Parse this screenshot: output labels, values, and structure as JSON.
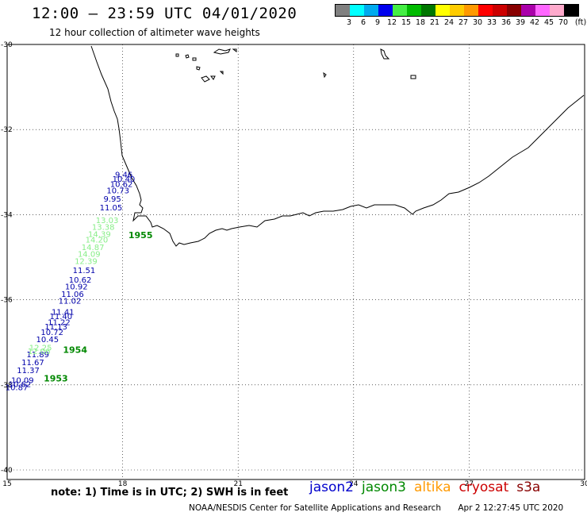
{
  "header": {
    "title": "12:00 – 23:59 UTC 04/01/2020",
    "subtitle": "12 hour collection of altimeter wave heights"
  },
  "legend": {
    "colors": [
      "#808080",
      "#00ffff",
      "#00aaee",
      "#0000ee",
      "#44ee44",
      "#00bb00",
      "#007700",
      "#ffff00",
      "#ffcc00",
      "#ff9900",
      "#ff0000",
      "#cc0000",
      "#880000",
      "#aa00aa",
      "#ff66ff",
      "#ffaacc",
      "#000000"
    ],
    "labels": [
      "3",
      "6",
      "9",
      "12",
      "15",
      "18",
      "21",
      "24",
      "27",
      "30",
      "33",
      "36",
      "39",
      "42",
      "45",
      "70",
      "(ft)"
    ]
  },
  "axes": {
    "lon_labels": [
      "15",
      "18",
      "21",
      "24",
      "27",
      "30"
    ],
    "lat_labels": [
      "-30",
      "-32",
      "-34",
      "-36",
      "-38",
      "-40"
    ]
  },
  "tracks": [
    {
      "satellite": "jason2",
      "color": "#0000aa",
      "points": [
        {
          "lon": 18.05,
          "lat": -33.05,
          "swh": "9.46"
        },
        {
          "lon": 17.98,
          "lat": -33.15,
          "swh": "10.40"
        },
        {
          "lon": 17.92,
          "lat": -33.27,
          "swh": "10.62"
        },
        {
          "lon": 17.83,
          "lat": -33.42,
          "swh": "10.73"
        },
        {
          "lon": 17.75,
          "lat": -33.62,
          "swh": "9.95"
        },
        {
          "lon": 17.65,
          "lat": -33.82,
          "swh": "11.05"
        },
        {
          "lon": 16.95,
          "lat": -35.3,
          "swh": "11.51"
        },
        {
          "lon": 16.85,
          "lat": -35.52,
          "swh": "10.62"
        },
        {
          "lon": 16.75,
          "lat": -35.68,
          "swh": "10.92"
        },
        {
          "lon": 16.65,
          "lat": -35.86,
          "swh": "11.06"
        },
        {
          "lon": 16.58,
          "lat": -36.02,
          "swh": "11.02"
        },
        {
          "lon": 16.4,
          "lat": -36.28,
          "swh": "11.41"
        },
        {
          "lon": 16.35,
          "lat": -36.38,
          "swh": "11.40"
        },
        {
          "lon": 16.3,
          "lat": -36.52,
          "swh": "11.22"
        },
        {
          "lon": 16.22,
          "lat": -36.62,
          "swh": "11.13"
        },
        {
          "lon": 16.12,
          "lat": -36.75,
          "swh": "10.72"
        },
        {
          "lon": 16.0,
          "lat": -36.92,
          "swh": "10.45"
        },
        {
          "lon": 15.75,
          "lat": -37.28,
          "swh": "11.89"
        },
        {
          "lon": 15.62,
          "lat": -37.46,
          "swh": "11.67"
        },
        {
          "lon": 15.5,
          "lat": -37.65,
          "swh": "11.37"
        },
        {
          "lon": 15.35,
          "lat": -37.88,
          "swh": "10.09"
        },
        {
          "lon": 15.28,
          "lat": -37.98,
          "swh": "10.62"
        },
        {
          "lon": 15.2,
          "lat": -38.05,
          "swh": "10.87"
        }
      ]
    },
    {
      "satellite": "jason3",
      "color": "#88ee88",
      "points": [
        {
          "lon": 17.55,
          "lat": -34.12,
          "swh": "13.03"
        },
        {
          "lon": 17.45,
          "lat": -34.28,
          "swh": "13.38"
        },
        {
          "lon": 17.35,
          "lat": -34.45,
          "swh": "14.39"
        },
        {
          "lon": 17.28,
          "lat": -34.58,
          "swh": "14.20"
        },
        {
          "lon": 17.18,
          "lat": -34.76,
          "swh": "14.87"
        },
        {
          "lon": 17.08,
          "lat": -34.92,
          "swh": "14.09"
        },
        {
          "lon": 17.0,
          "lat": -35.08,
          "swh": "12.39"
        },
        {
          "lon": 15.82,
          "lat": -37.12,
          "swh": "12.25"
        },
        {
          "lon": 15.78,
          "lat": -37.2,
          "swh": "12.06"
        }
      ]
    }
  ],
  "time_labels": [
    {
      "text": "1955",
      "lon": 18.15,
      "lat": -34.55
    },
    {
      "text": "1954",
      "lon": 16.45,
      "lat": -37.25
    },
    {
      "text": "1953",
      "lon": 15.95,
      "lat": -37.92
    }
  ],
  "footer": {
    "note": "note: 1) Time is in UTC; 2) SWH is in feet",
    "satellites": [
      {
        "name": "jason2",
        "color": "#0000cc"
      },
      {
        "name": "jason3",
        "color": "#008800"
      },
      {
        "name": "altika",
        "color": "#ff9900"
      },
      {
        "name": "cryosat",
        "color": "#cc0000"
      },
      {
        "name": "s3a",
        "color": "#880000"
      }
    ],
    "credit": "NOAA/NESDIS Center for Satellite Applications and Research",
    "timestamp": "Apr  2 12:27:45 UTC 2020"
  }
}
